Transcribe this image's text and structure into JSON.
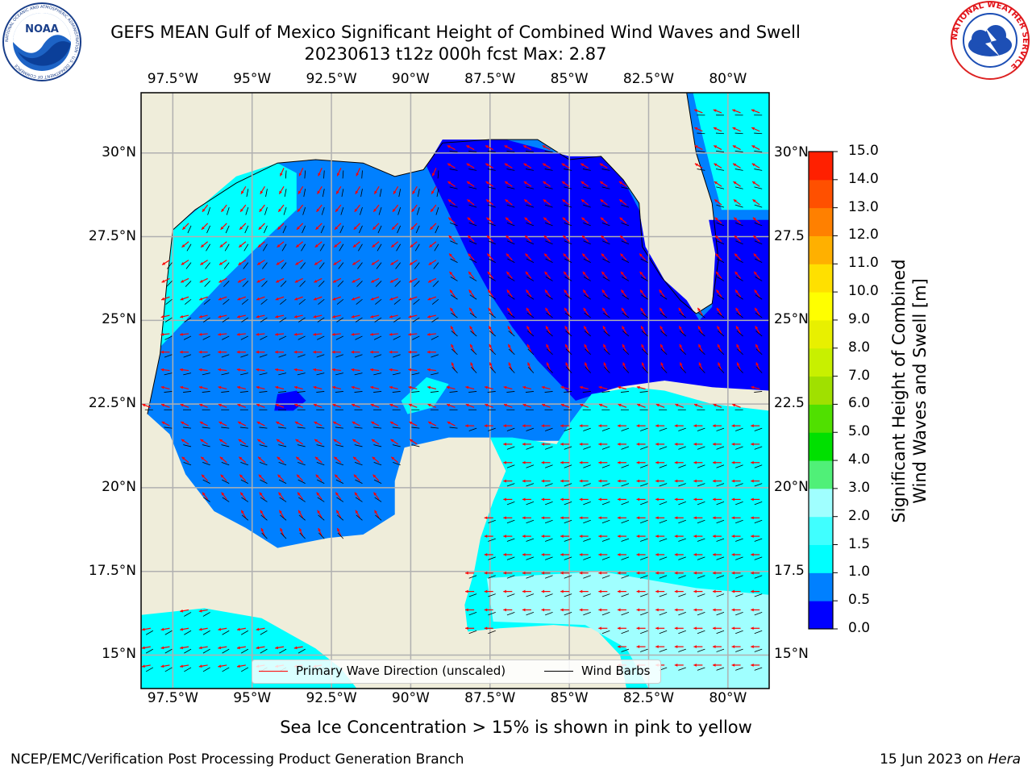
{
  "title": {
    "line1": "GEFS MEAN Gulf of Mexico Significant Height of Combined Wind Waves and Swell",
    "line2": "20230613 t12z 000h fcst   Max: 2.87"
  },
  "logos": {
    "noaa": {
      "center_text": "NOAA",
      "ring_text": "NATIONAL OCEANIC AND ATMOSPHERIC ADMINISTRATION · U.S. DEPARTMENT OF COMMERCE"
    },
    "nws": {
      "ring_text": "NATIONAL WEATHER SERVICE"
    }
  },
  "map": {
    "lon_range": [
      -98.5,
      -78.7
    ],
    "lat_range": [
      14.0,
      31.8
    ],
    "lon_ticks": [
      "97.5°W",
      "95°W",
      "92.5°W",
      "90°W",
      "87.5°W",
      "85°W",
      "82.5°W",
      "80°W"
    ],
    "lat_ticks": [
      "30°N",
      "27.5°N",
      "25°N",
      "22.5°N",
      "20°N",
      "17.5°N",
      "15°N"
    ],
    "lat_ticks_right": [
      "30°N",
      "27.5",
      "25°N",
      "22.5",
      "20°N",
      "17.5",
      "15°N"
    ],
    "colors": {
      "land": "#efedda",
      "coast": "#000000",
      "grid": "#b0b0b0",
      "wave_arrow": "#ff0000",
      "barb": "#000000"
    },
    "legend": {
      "wave_label": "Primary Wave Direction (unscaled)",
      "barb_label": "Wind Barbs"
    }
  },
  "colorbar": {
    "label_line1": "Significant Height of Combined",
    "label_line2": "Wind Waves and Swell [m]",
    "ticks": [
      "15.0",
      "14.0",
      "13.0",
      "12.0",
      "11.0",
      "10.0",
      "9.0",
      "8.0",
      "7.0",
      "6.0",
      "5.0",
      "4.0",
      "3.0",
      "2.0",
      "1.5",
      "1.0",
      "0.5",
      "0.0"
    ],
    "colors_bottom_to_top": [
      "#0000ff",
      "#0080ff",
      "#00ffff",
      "#40ffff",
      "#a0ffff",
      "#50f078",
      "#00e000",
      "#50e000",
      "#a0e000",
      "#c8f000",
      "#e8f000",
      "#ffff00",
      "#ffe000",
      "#ffb000",
      "#ff8000",
      "#ff5000",
      "#ff2000"
    ]
  },
  "ice_note": "Sea Ice Concentration > 15% is shown in pink to yellow",
  "footer": {
    "left": "NCEP/EMC/Verification Post Processing Product Generation Branch",
    "right_date": "15 Jun 2023 on ",
    "right_machine": "Hera"
  }
}
